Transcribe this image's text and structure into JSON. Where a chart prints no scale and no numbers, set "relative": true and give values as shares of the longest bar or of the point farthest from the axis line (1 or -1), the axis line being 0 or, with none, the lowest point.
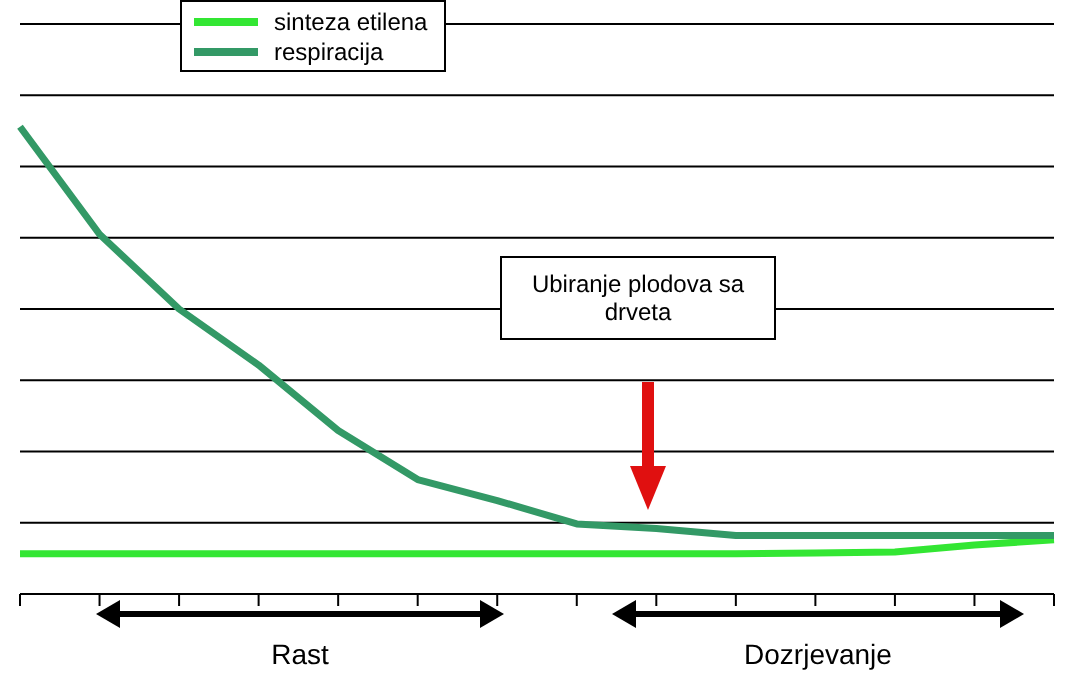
{
  "chart_data": {
    "type": "line",
    "relative": true,
    "categories": [
      null,
      null,
      null,
      null,
      null,
      null,
      null,
      null,
      null,
      null,
      null,
      null,
      null,
      null
    ],
    "series": [
      {
        "name": "sinteza etilena",
        "color": "#33e633",
        "values": [
          0.086,
          0.086,
          0.086,
          0.086,
          0.086,
          0.086,
          0.086,
          0.086,
          0.086,
          0.086,
          0.088,
          0.09,
          0.105,
          0.116
        ]
      },
      {
        "name": "respiracija",
        "color": "#339966",
        "values": [
          1,
          0.77,
          0.61,
          0.49,
          0.35,
          0.245,
          0.2,
          0.15,
          0.14,
          0.125,
          0.125,
          0.125,
          0.125,
          0.125
        ]
      }
    ],
    "annotations": [
      "Ubiranje plodova sa drveta",
      "Rast",
      "Dozrjevanje"
    ],
    "grid": "y",
    "legend": "top left",
    "marker": "none",
    "line_style": "solid"
  }
}
